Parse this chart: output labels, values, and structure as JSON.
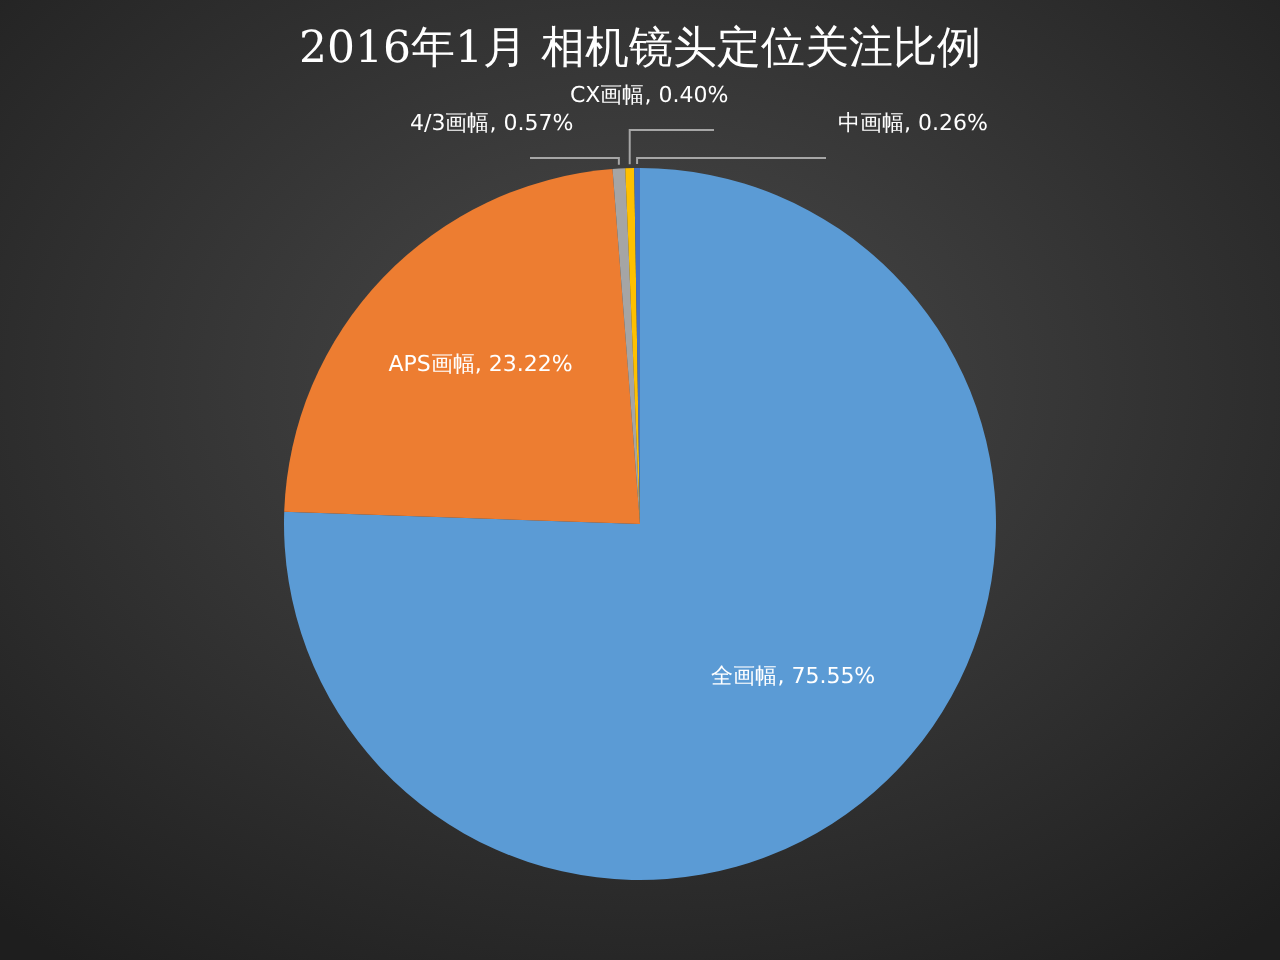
{
  "chart_data": {
    "type": "pie",
    "title": "2016年1月 相机镜头定位关注比例",
    "categories": [
      "全画幅",
      "APS画幅",
      "4/3画幅",
      "CX画幅",
      "中画幅"
    ],
    "values": [
      75.55,
      23.22,
      0.57,
      0.4,
      0.26
    ],
    "colors": [
      "#5b9bd5",
      "#ed7d31",
      "#a5a5a5",
      "#ffc000",
      "#4472c4"
    ],
    "value_labels": [
      "75.55%",
      "23.22%",
      "0.57%",
      "0.40%",
      "0.26%"
    ]
  }
}
